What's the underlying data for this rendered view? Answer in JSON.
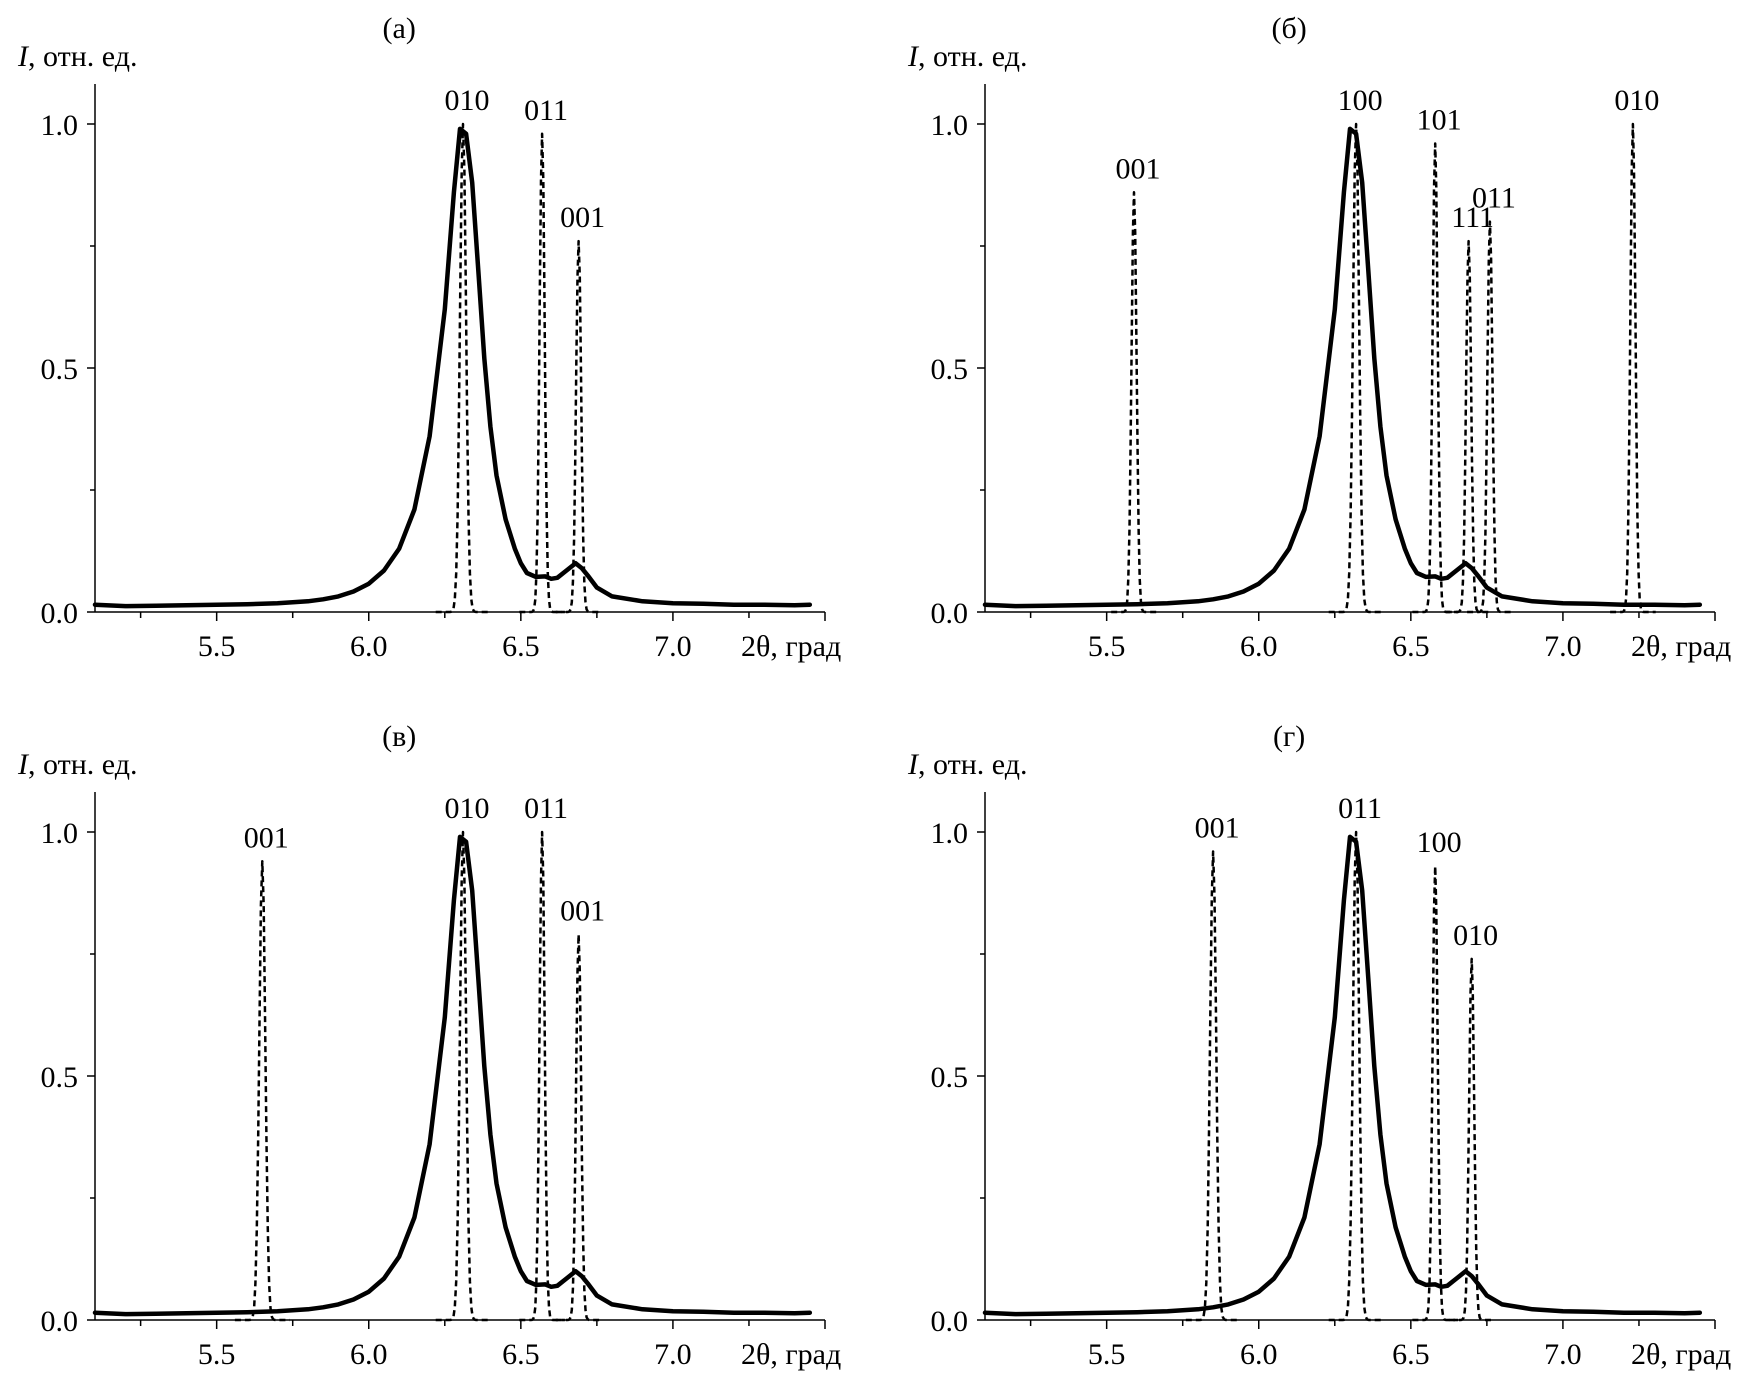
{
  "figure": {
    "x_axis_label": "2θ, град",
    "y_axis_label_italic": "I",
    "y_axis_label_rest": ", отн. ед.",
    "x_ticks": [
      "5.5",
      "6.0",
      "6.5",
      "7.0"
    ],
    "y_ticks": [
      "0.0",
      "0.5",
      "1.0"
    ],
    "colors": {
      "measured": "#000000",
      "calculated": "#000000",
      "axes": "#000000"
    }
  },
  "chart_data": [
    {
      "type": "line",
      "panel": "(а)",
      "title": "(а)",
      "xlabel": "2θ, град",
      "ylabel": "I, отн. ед.",
      "xlim": [
        5.1,
        7.5
      ],
      "ylim": [
        0.0,
        1.0
      ],
      "grid": false,
      "series": [
        {
          "style": "solid",
          "x": [
            5.1,
            5.2,
            5.3,
            5.4,
            5.5,
            5.6,
            5.7,
            5.8,
            5.85,
            5.9,
            5.95,
            6.0,
            6.05,
            6.1,
            6.15,
            6.2,
            6.25,
            6.28,
            6.3,
            6.32,
            6.34,
            6.36,
            6.38,
            6.4,
            6.42,
            6.45,
            6.48,
            6.5,
            6.52,
            6.55,
            6.58,
            6.6,
            6.62,
            6.65,
            6.68,
            6.7,
            6.72,
            6.75,
            6.8,
            6.9,
            7.0,
            7.1,
            7.2,
            7.3,
            7.4,
            7.45
          ],
          "y": [
            0.015,
            0.012,
            0.013,
            0.014,
            0.015,
            0.016,
            0.018,
            0.022,
            0.026,
            0.032,
            0.042,
            0.058,
            0.085,
            0.13,
            0.21,
            0.36,
            0.62,
            0.86,
            0.99,
            0.98,
            0.88,
            0.7,
            0.52,
            0.38,
            0.28,
            0.19,
            0.13,
            0.1,
            0.08,
            0.072,
            0.073,
            0.068,
            0.07,
            0.085,
            0.1,
            0.09,
            0.075,
            0.05,
            0.032,
            0.022,
            0.018,
            0.017,
            0.015,
            0.015,
            0.014,
            0.015
          ]
        },
        {
          "style": "dashed",
          "peaks": [
            {
              "label": "010",
              "x": 6.31,
              "height": 1.0,
              "width": 0.03
            },
            {
              "label": "011",
              "x": 6.57,
              "height": 0.98,
              "width": 0.025
            },
            {
              "label": "001",
              "x": 6.69,
              "height": 0.76,
              "width": 0.025
            }
          ]
        }
      ]
    },
    {
      "type": "line",
      "panel": "(б)",
      "title": "(б)",
      "xlabel": "2θ, град",
      "ylabel": "I, отн. ед.",
      "xlim": [
        5.1,
        7.5
      ],
      "ylim": [
        0.0,
        1.0
      ],
      "grid": false,
      "series": [
        {
          "style": "solid",
          "x": [
            5.1,
            5.2,
            5.3,
            5.4,
            5.5,
            5.6,
            5.7,
            5.8,
            5.85,
            5.9,
            5.95,
            6.0,
            6.05,
            6.1,
            6.15,
            6.2,
            6.25,
            6.28,
            6.3,
            6.32,
            6.34,
            6.36,
            6.38,
            6.4,
            6.42,
            6.45,
            6.48,
            6.5,
            6.52,
            6.55,
            6.58,
            6.6,
            6.62,
            6.65,
            6.68,
            6.7,
            6.72,
            6.75,
            6.8,
            6.9,
            7.0,
            7.1,
            7.2,
            7.3,
            7.4,
            7.45
          ],
          "y": [
            0.015,
            0.012,
            0.013,
            0.014,
            0.015,
            0.016,
            0.018,
            0.022,
            0.026,
            0.032,
            0.042,
            0.058,
            0.085,
            0.13,
            0.21,
            0.36,
            0.62,
            0.86,
            0.99,
            0.98,
            0.88,
            0.7,
            0.52,
            0.38,
            0.28,
            0.19,
            0.13,
            0.1,
            0.08,
            0.072,
            0.073,
            0.068,
            0.07,
            0.085,
            0.1,
            0.09,
            0.075,
            0.05,
            0.032,
            0.022,
            0.018,
            0.017,
            0.015,
            0.015,
            0.014,
            0.015
          ]
        },
        {
          "style": "dashed",
          "peaks": [
            {
              "label": "001",
              "x": 5.59,
              "height": 0.86,
              "width": 0.025
            },
            {
              "label": "100",
              "x": 6.32,
              "height": 1.0,
              "width": 0.03
            },
            {
              "label": "101",
              "x": 6.58,
              "height": 0.96,
              "width": 0.025
            },
            {
              "label": "111",
              "x": 6.69,
              "height": 0.76,
              "width": 0.025
            },
            {
              "label": "011",
              "x": 6.76,
              "height": 0.8,
              "width": 0.025
            },
            {
              "label": "010",
              "x": 7.23,
              "height": 1.0,
              "width": 0.025
            }
          ]
        }
      ]
    },
    {
      "type": "line",
      "panel": "(в)",
      "title": "(в)",
      "xlabel": "2θ, град",
      "ylabel": "I, отн. ед.",
      "xlim": [
        5.1,
        7.5
      ],
      "ylim": [
        0.0,
        1.0
      ],
      "grid": false,
      "series": [
        {
          "style": "solid",
          "x": [
            5.1,
            5.2,
            5.3,
            5.4,
            5.5,
            5.6,
            5.7,
            5.8,
            5.85,
            5.9,
            5.95,
            6.0,
            6.05,
            6.1,
            6.15,
            6.2,
            6.25,
            6.28,
            6.3,
            6.32,
            6.34,
            6.36,
            6.38,
            6.4,
            6.42,
            6.45,
            6.48,
            6.5,
            6.52,
            6.55,
            6.58,
            6.6,
            6.62,
            6.65,
            6.68,
            6.7,
            6.72,
            6.75,
            6.8,
            6.9,
            7.0,
            7.1,
            7.2,
            7.3,
            7.4,
            7.45
          ],
          "y": [
            0.015,
            0.012,
            0.013,
            0.014,
            0.015,
            0.016,
            0.018,
            0.022,
            0.026,
            0.032,
            0.042,
            0.058,
            0.085,
            0.13,
            0.21,
            0.36,
            0.62,
            0.86,
            0.99,
            0.98,
            0.88,
            0.7,
            0.52,
            0.38,
            0.28,
            0.19,
            0.13,
            0.1,
            0.08,
            0.072,
            0.073,
            0.068,
            0.07,
            0.085,
            0.1,
            0.09,
            0.075,
            0.05,
            0.032,
            0.022,
            0.018,
            0.017,
            0.015,
            0.015,
            0.014,
            0.015
          ]
        },
        {
          "style": "dashed",
          "peaks": [
            {
              "label": "001",
              "x": 5.65,
              "height": 0.94,
              "width": 0.03
            },
            {
              "label": "010",
              "x": 6.31,
              "height": 1.0,
              "width": 0.03
            },
            {
              "label": "011",
              "x": 6.57,
              "height": 1.0,
              "width": 0.025
            },
            {
              "label": "001",
              "x": 6.69,
              "height": 0.79,
              "width": 0.025
            }
          ]
        }
      ]
    },
    {
      "type": "line",
      "panel": "(г)",
      "title": "(г)",
      "xlabel": "2θ, град",
      "ylabel": "I, отн. ед.",
      "xlim": [
        5.1,
        7.5
      ],
      "ylim": [
        0.0,
        1.0
      ],
      "grid": false,
      "series": [
        {
          "style": "solid",
          "x": [
            5.1,
            5.2,
            5.3,
            5.4,
            5.5,
            5.6,
            5.7,
            5.8,
            5.85,
            5.9,
            5.95,
            6.0,
            6.05,
            6.1,
            6.15,
            6.2,
            6.25,
            6.28,
            6.3,
            6.32,
            6.34,
            6.36,
            6.38,
            6.4,
            6.42,
            6.45,
            6.48,
            6.5,
            6.52,
            6.55,
            6.58,
            6.6,
            6.62,
            6.65,
            6.68,
            6.7,
            6.72,
            6.75,
            6.8,
            6.9,
            7.0,
            7.1,
            7.2,
            7.3,
            7.4,
            7.45
          ],
          "y": [
            0.015,
            0.012,
            0.013,
            0.014,
            0.015,
            0.016,
            0.018,
            0.022,
            0.026,
            0.032,
            0.042,
            0.058,
            0.085,
            0.13,
            0.21,
            0.36,
            0.62,
            0.86,
            0.99,
            0.98,
            0.88,
            0.7,
            0.52,
            0.38,
            0.28,
            0.19,
            0.13,
            0.1,
            0.08,
            0.072,
            0.073,
            0.068,
            0.07,
            0.085,
            0.1,
            0.09,
            0.075,
            0.05,
            0.032,
            0.022,
            0.018,
            0.017,
            0.015,
            0.015,
            0.014,
            0.015
          ]
        },
        {
          "style": "dashed",
          "peaks": [
            {
              "label": "001",
              "x": 5.85,
              "height": 0.96,
              "width": 0.03
            },
            {
              "label": "011",
              "x": 6.32,
              "height": 1.0,
              "width": 0.03
            },
            {
              "label": "100",
              "x": 6.58,
              "height": 0.93,
              "width": 0.025
            },
            {
              "label": "010",
              "x": 6.7,
              "height": 0.74,
              "width": 0.025
            }
          ]
        }
      ]
    }
  ]
}
